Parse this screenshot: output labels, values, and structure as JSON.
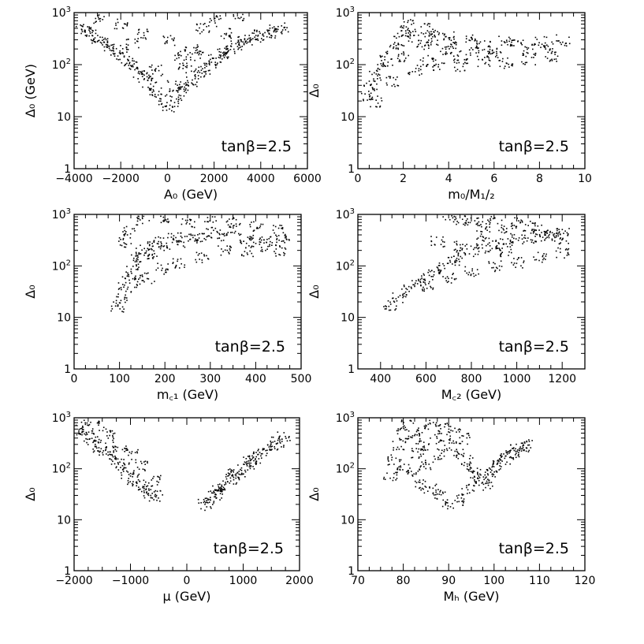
{
  "figure": {
    "annotation": "tanβ=2.5"
  },
  "chart_data": [
    {
      "type": "scatter",
      "xlabel": "A₀ (GeV)",
      "ylabel": "Δ₀ (GeV)",
      "xlim": [
        -4000,
        6000
      ],
      "ylim": [
        1,
        1000
      ],
      "yscale": "log",
      "xticks": [
        "−4000",
        "−2000",
        "0",
        "2000",
        "4000",
        "6000"
      ],
      "xtick_values": [
        -4000,
        -2000,
        0,
        2000,
        4000,
        6000
      ],
      "yticks": [
        "1",
        "10",
        "10²",
        "10³"
      ],
      "annotation": "tanβ=2.5",
      "points": [
        [
          -3800,
          520
        ],
        [
          -3500,
          450
        ],
        [
          -3200,
          370
        ],
        [
          -3000,
          330
        ],
        [
          -2700,
          270
        ],
        [
          -2500,
          230
        ],
        [
          -2200,
          190
        ],
        [
          -2000,
          160
        ],
        [
          -1700,
          120
        ],
        [
          -1500,
          100
        ],
        [
          -1200,
          75
        ],
        [
          -1000,
          60
        ],
        [
          -800,
          45
        ],
        [
          -500,
          30
        ],
        [
          -300,
          22
        ],
        [
          0,
          16
        ],
        [
          300,
          20
        ],
        [
          500,
          30
        ],
        [
          800,
          40
        ],
        [
          1000,
          50
        ],
        [
          1300,
          70
        ],
        [
          1500,
          85
        ],
        [
          1800,
          110
        ],
        [
          2000,
          130
        ],
        [
          2300,
          160
        ],
        [
          2500,
          180
        ],
        [
          2800,
          210
        ],
        [
          3000,
          240
        ],
        [
          3300,
          280
        ],
        [
          3500,
          300
        ],
        [
          3800,
          350
        ],
        [
          4000,
          380
        ],
        [
          4300,
          420
        ],
        [
          4600,
          470
        ],
        [
          4900,
          520
        ],
        [
          -3000,
          800
        ],
        [
          -2000,
          600
        ],
        [
          -1000,
          400
        ],
        [
          0,
          300
        ],
        [
          500,
          150
        ],
        [
          1000,
          200
        ],
        [
          1500,
          500
        ],
        [
          2000,
          700
        ],
        [
          3000,
          900
        ],
        [
          -1500,
          250
        ],
        [
          -500,
          80
        ],
        [
          200,
          40
        ],
        [
          700,
          90
        ],
        [
          1200,
          150
        ],
        [
          2500,
          400
        ]
      ]
    },
    {
      "type": "scatter",
      "xlabel": "m₀/M₁/₂",
      "ylabel": "Δ₀",
      "xlim": [
        0,
        10
      ],
      "ylim": [
        1,
        1000
      ],
      "yscale": "log",
      "xticks": [
        "0",
        "2",
        "4",
        "6",
        "8",
        "10"
      ],
      "xtick_values": [
        0,
        2,
        4,
        6,
        8,
        10
      ],
      "yticks": [
        "1",
        "10",
        "10²",
        "10³"
      ],
      "annotation": "tanβ=2.5",
      "points": [
        [
          0.3,
          25
        ],
        [
          0.5,
          40
        ],
        [
          0.8,
          60
        ],
        [
          1,
          90
        ],
        [
          1.2,
          120
        ],
        [
          1.5,
          200
        ],
        [
          1.8,
          300
        ],
        [
          2,
          450
        ],
        [
          2.2,
          600
        ],
        [
          2.5,
          350
        ],
        [
          2.8,
          250
        ],
        [
          3,
          500
        ],
        [
          3.2,
          300
        ],
        [
          3.5,
          400
        ],
        [
          3.8,
          200
        ],
        [
          4,
          350
        ],
        [
          4.5,
          150
        ],
        [
          5,
          300
        ],
        [
          5.5,
          250
        ],
        [
          6,
          200
        ],
        [
          6.5,
          300
        ],
        [
          7,
          250
        ],
        [
          7.5,
          200
        ],
        [
          8,
          280
        ],
        [
          8.5,
          220
        ],
        [
          9,
          300
        ],
        [
          0.8,
          20
        ],
        [
          1.5,
          50
        ],
        [
          2.5,
          80
        ],
        [
          3.5,
          100
        ],
        [
          4.5,
          90
        ],
        [
          5.5,
          120
        ],
        [
          6.5,
          110
        ],
        [
          7.5,
          130
        ],
        [
          8.5,
          150
        ],
        [
          2,
          150
        ],
        [
          3,
          120
        ],
        [
          4,
          250
        ],
        [
          5,
          180
        ],
        [
          6,
          150
        ]
      ]
    },
    {
      "type": "scatter",
      "xlabel": "m꜀₁ (GeV)",
      "ylabel": "Δ₀",
      "xlim": [
        0,
        500
      ],
      "ylim": [
        1,
        1000
      ],
      "yscale": "log",
      "xticks": [
        "0",
        "100",
        "200",
        "300",
        "400",
        "500"
      ],
      "xtick_values": [
        0,
        100,
        200,
        300,
        400,
        500
      ],
      "yticks": [
        "1",
        "10",
        "10²",
        "10³"
      ],
      "annotation": "tanβ=2.5",
      "points": [
        [
          95,
          16
        ],
        [
          100,
          25
        ],
        [
          110,
          40
        ],
        [
          120,
          70
        ],
        [
          130,
          100
        ],
        [
          140,
          150
        ],
        [
          150,
          200
        ],
        [
          160,
          250
        ],
        [
          170,
          180
        ],
        [
          180,
          300
        ],
        [
          200,
          250
        ],
        [
          220,
          350
        ],
        [
          240,
          300
        ],
        [
          260,
          400
        ],
        [
          280,
          350
        ],
        [
          300,
          450
        ],
        [
          320,
          400
        ],
        [
          350,
          500
        ],
        [
          380,
          350
        ],
        [
          400,
          300
        ],
        [
          420,
          250
        ],
        [
          450,
          200
        ],
        [
          120,
          500
        ],
        [
          150,
          800
        ],
        [
          200,
          900
        ],
        [
          250,
          700
        ],
        [
          300,
          900
        ],
        [
          350,
          800
        ],
        [
          400,
          600
        ],
        [
          450,
          500
        ],
        [
          110,
          300
        ],
        [
          130,
          50
        ],
        [
          160,
          60
        ],
        [
          190,
          90
        ],
        [
          230,
          120
        ],
        [
          280,
          150
        ],
        [
          330,
          200
        ],
        [
          380,
          200
        ],
        [
          430,
          300
        ],
        [
          460,
          350
        ]
      ]
    },
    {
      "type": "scatter",
      "xlabel": "M꜀₂ (GeV)",
      "ylabel": "Δ₀",
      "xlim": [
        300,
        1300
      ],
      "ylim": [
        1,
        1000
      ],
      "yscale": "log",
      "xticks": [
        "400",
        "600",
        "800",
        "1000",
        "1200"
      ],
      "xtick_values": [
        400,
        600,
        800,
        1000,
        1200
      ],
      "yticks": [
        "1",
        "10",
        "10²",
        "10³"
      ],
      "annotation": "tanβ=2.5",
      "points": [
        [
          440,
          18
        ],
        [
          480,
          25
        ],
        [
          520,
          35
        ],
        [
          560,
          45
        ],
        [
          600,
          60
        ],
        [
          640,
          80
        ],
        [
          680,
          100
        ],
        [
          720,
          130
        ],
        [
          760,
          160
        ],
        [
          800,
          200
        ],
        [
          850,
          230
        ],
        [
          900,
          260
        ],
        [
          950,
          300
        ],
        [
          1000,
          330
        ],
        [
          1050,
          350
        ],
        [
          1100,
          380
        ],
        [
          1150,
          400
        ],
        [
          1200,
          450
        ],
        [
          700,
          900
        ],
        [
          750,
          800
        ],
        [
          800,
          700
        ],
        [
          850,
          600
        ],
        [
          900,
          800
        ],
        [
          950,
          500
        ],
        [
          1000,
          700
        ],
        [
          1050,
          600
        ],
        [
          1100,
          500
        ],
        [
          1150,
          400
        ],
        [
          1200,
          350
        ],
        [
          600,
          40
        ],
        [
          700,
          60
        ],
        [
          800,
          80
        ],
        [
          900,
          100
        ],
        [
          1000,
          120
        ],
        [
          1100,
          150
        ],
        [
          1200,
          180
        ],
        [
          650,
          300
        ],
        [
          750,
          250
        ],
        [
          850,
          400
        ],
        [
          950,
          200
        ]
      ]
    },
    {
      "type": "scatter",
      "xlabel": "μ (GeV)",
      "ylabel": "Δ₀",
      "xlim": [
        -2000,
        2000
      ],
      "ylim": [
        1,
        1000
      ],
      "yscale": "log",
      "xticks": [
        "−2000",
        "−1000",
        "0",
        "1000",
        "2000"
      ],
      "xtick_values": [
        -2000,
        -1000,
        0,
        1000,
        2000
      ],
      "yticks": [
        "1",
        "10",
        "10²",
        "10³"
      ],
      "annotation": "tanβ=2.5",
      "points": [
        [
          -1950,
          600
        ],
        [
          -1850,
          500
        ],
        [
          -1750,
          420
        ],
        [
          -1650,
          350
        ],
        [
          -1550,
          280
        ],
        [
          -1450,
          220
        ],
        [
          -1350,
          180
        ],
        [
          -1250,
          140
        ],
        [
          -1150,
          110
        ],
        [
          -1050,
          85
        ],
        [
          -950,
          65
        ],
        [
          -850,
          50
        ],
        [
          -750,
          40
        ],
        [
          -650,
          35
        ],
        [
          -550,
          30
        ],
        [
          -1800,
          900
        ],
        [
          -1600,
          700
        ],
        [
          -1400,
          500
        ],
        [
          -1200,
          300
        ],
        [
          -1000,
          200
        ],
        [
          -800,
          120
        ],
        [
          -600,
          60
        ],
        [
          300,
          20
        ],
        [
          400,
          25
        ],
        [
          500,
          32
        ],
        [
          600,
          40
        ],
        [
          700,
          50
        ],
        [
          800,
          65
        ],
        [
          900,
          80
        ],
        [
          1000,
          100
        ],
        [
          1100,
          130
        ],
        [
          1200,
          160
        ],
        [
          1300,
          200
        ],
        [
          1400,
          250
        ],
        [
          1500,
          300
        ],
        [
          1600,
          350
        ],
        [
          1700,
          420
        ],
        [
          500,
          40
        ],
        [
          800,
          80
        ],
        [
          1100,
          150
        ]
      ]
    },
    {
      "type": "scatter",
      "xlabel": "Mₕ (GeV)",
      "ylabel": "Δ₀",
      "xlim": [
        70,
        120
      ],
      "ylim": [
        1,
        1000
      ],
      "yscale": "log",
      "xticks": [
        "70",
        "80",
        "90",
        "100",
        "110",
        "120"
      ],
      "xtick_values": [
        70,
        80,
        90,
        100,
        110,
        120
      ],
      "yticks": [
        "1",
        "10",
        "10²",
        "10³"
      ],
      "annotation": "tanβ=2.5",
      "points": [
        [
          77,
          70
        ],
        [
          78,
          150
        ],
        [
          79,
          300
        ],
        [
          80,
          500
        ],
        [
          81,
          800
        ],
        [
          82,
          400
        ],
        [
          83,
          200
        ],
        [
          84,
          600
        ],
        [
          85,
          300
        ],
        [
          86,
          900
        ],
        [
          87,
          400
        ],
        [
          88,
          200
        ],
        [
          89,
          700
        ],
        [
          90,
          300
        ],
        [
          91,
          500
        ],
        [
          92,
          200
        ],
        [
          93,
          400
        ],
        [
          94,
          150
        ],
        [
          95,
          100
        ],
        [
          96,
          80
        ],
        [
          97,
          60
        ],
        [
          98,
          50
        ],
        [
          99,
          80
        ],
        [
          100,
          100
        ],
        [
          101,
          120
        ],
        [
          102,
          150
        ],
        [
          103,
          180
        ],
        [
          104,
          200
        ],
        [
          105,
          250
        ],
        [
          106,
          280
        ],
        [
          107,
          300
        ],
        [
          80,
          100
        ],
        [
          82,
          80
        ],
        [
          84,
          50
        ],
        [
          86,
          40
        ],
        [
          88,
          30
        ],
        [
          90,
          20
        ],
        [
          92,
          25
        ],
        [
          94,
          40
        ],
        [
          85,
          120
        ]
      ]
    }
  ]
}
